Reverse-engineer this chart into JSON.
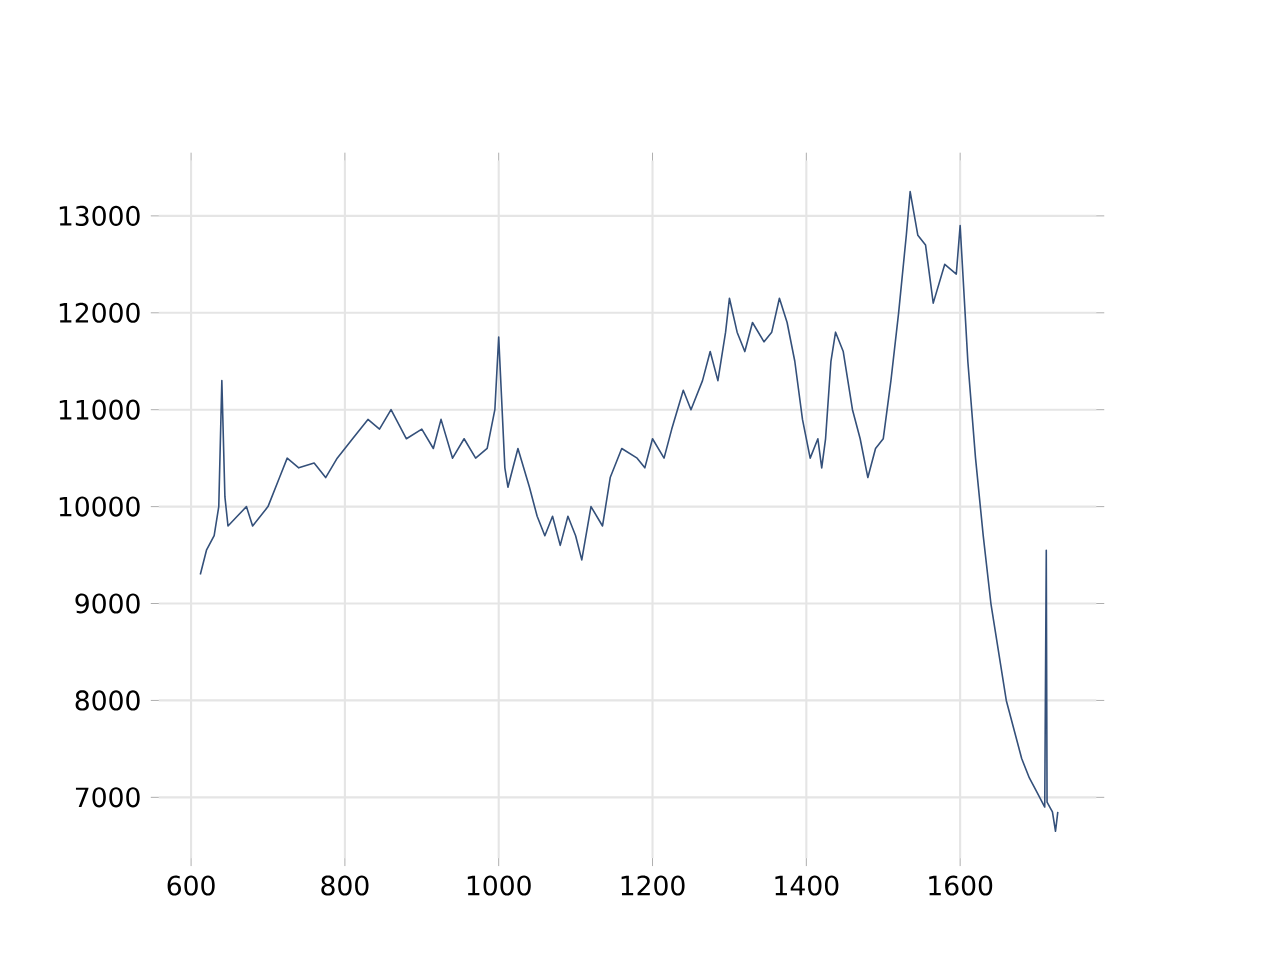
{
  "chart_data": {
    "type": "line",
    "x": [
      612,
      620,
      630,
      636,
      640,
      644,
      648,
      660,
      672,
      680,
      700,
      715,
      725,
      740,
      760,
      775,
      790,
      810,
      830,
      845,
      860,
      880,
      900,
      915,
      925,
      940,
      955,
      970,
      985,
      995,
      1000,
      1008,
      1012,
      1025,
      1040,
      1050,
      1060,
      1070,
      1080,
      1090,
      1100,
      1108,
      1120,
      1135,
      1145,
      1160,
      1180,
      1190,
      1200,
      1215,
      1225,
      1240,
      1250,
      1265,
      1275,
      1285,
      1295,
      1300,
      1310,
      1320,
      1330,
      1345,
      1355,
      1365,
      1375,
      1385,
      1395,
      1405,
      1415,
      1420,
      1425,
      1432,
      1438,
      1448,
      1460,
      1470,
      1480,
      1490,
      1500,
      1510,
      1520,
      1530,
      1535,
      1545,
      1555,
      1565,
      1580,
      1595,
      1600,
      1610,
      1620,
      1630,
      1640,
      1650,
      1660,
      1670,
      1680,
      1690,
      1700,
      1710,
      1712,
      1713,
      1720,
      1724,
      1727
    ],
    "series": [
      {
        "color": "#34507a",
        "values": [
          9300,
          9550,
          9700,
          10000,
          11300,
          10100,
          9800,
          9900,
          10000,
          9800,
          10000,
          10300,
          10500,
          10400,
          10450,
          10300,
          10500,
          10700,
          10900,
          10800,
          11000,
          10700,
          10800,
          10600,
          10900,
          10500,
          10700,
          10500,
          10600,
          11000,
          11750,
          10400,
          10200,
          10600,
          10200,
          9900,
          9700,
          9900,
          9600,
          9900,
          9700,
          9450,
          10000,
          9800,
          10300,
          10600,
          10500,
          10400,
          10700,
          10500,
          10800,
          11200,
          11000,
          11300,
          11600,
          11300,
          11800,
          12150,
          11800,
          11600,
          11900,
          11700,
          11800,
          12150,
          11900,
          11500,
          10900,
          10500,
          10700,
          10400,
          10700,
          11500,
          11800,
          11600,
          11000,
          10700,
          10300,
          10600,
          10700,
          11300,
          12000,
          12800,
          13250,
          12800,
          12700,
          12100,
          12500,
          12400,
          12900,
          11500,
          10500,
          9700,
          9000,
          8500,
          8000,
          7700,
          7400,
          7200,
          7050,
          6900,
          9550,
          6950,
          6850,
          6650,
          6850
        ]
      }
    ],
    "xlim": [
      558,
      1777
    ],
    "ylim": [
      6373,
      13570
    ],
    "xticks": [
      600,
      800,
      1000,
      1200,
      1400,
      1600
    ],
    "yticks": [
      7000,
      8000,
      9000,
      10000,
      11000,
      12000,
      13000
    ],
    "grid": true
  }
}
